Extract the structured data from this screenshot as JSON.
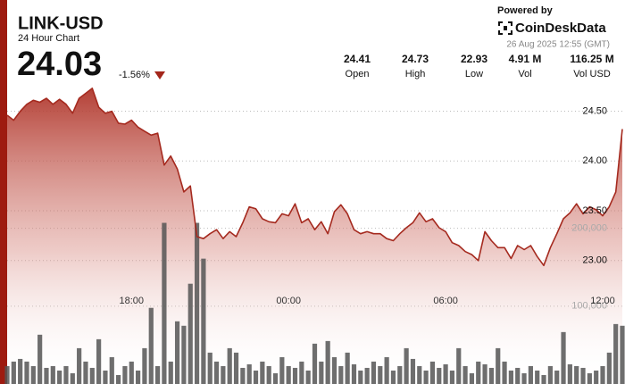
{
  "chart_data": {
    "type": "line",
    "title": "LINK-USD",
    "subtitle": "24 Hour Chart",
    "price": 24.03,
    "change": {
      "value": -1.56,
      "label": "-1.56%"
    },
    "stats": [
      {
        "name": "Open",
        "value": 24.41
      },
      {
        "name": "High",
        "value": 24.73
      },
      {
        "name": "Low",
        "value": 22.93
      },
      {
        "name": "Vol",
        "value": {
          "value": 4910000,
          "label": "4.91 M"
        }
      },
      {
        "name": "Vol USD",
        "value": {
          "value": 116250000,
          "label": "116.25 M"
        }
      }
    ],
    "powered_by": "Powered by",
    "brand": "CoinDeskData",
    "timestamp": "26 Aug 2025 12:55 (GMT)",
    "categories": [
      null,
      null,
      null,
      null,
      null,
      null,
      null,
      null,
      null,
      null,
      null,
      null,
      null,
      null,
      null,
      null,
      null,
      null,
      null,
      "18:00",
      null,
      null,
      null,
      null,
      null,
      null,
      null,
      null,
      null,
      null,
      null,
      null,
      null,
      null,
      null,
      null,
      null,
      null,
      null,
      null,
      null,
      null,
      null,
      "00:00",
      null,
      null,
      null,
      null,
      null,
      null,
      null,
      null,
      null,
      null,
      null,
      null,
      null,
      null,
      null,
      null,
      null,
      null,
      null,
      null,
      null,
      null,
      null,
      "06:00",
      null,
      null,
      null,
      null,
      null,
      null,
      null,
      null,
      null,
      null,
      null,
      null,
      null,
      null,
      null,
      null,
      null,
      null,
      null,
      null,
      null,
      null,
      null,
      "12:00",
      null,
      null,
      null
    ],
    "series": [
      {
        "type": "area",
        "color": "#a52a1f",
        "values": [
          24.46,
          24.41,
          24.5,
          24.57,
          24.61,
          24.59,
          24.63,
          24.57,
          24.62,
          24.57,
          24.48,
          24.63,
          24.68,
          24.73,
          24.54,
          24.48,
          24.5,
          24.38,
          24.37,
          24.41,
          24.34,
          24.3,
          24.26,
          24.28,
          23.96,
          24.05,
          23.92,
          23.69,
          23.75,
          23.24,
          23.22,
          23.27,
          23.31,
          23.22,
          23.29,
          23.24,
          23.38,
          23.54,
          23.52,
          23.42,
          23.39,
          23.38,
          23.47,
          23.45,
          23.57,
          23.38,
          23.42,
          23.31,
          23.39,
          23.27,
          23.49,
          23.56,
          23.47,
          23.31,
          23.27,
          23.29,
          23.27,
          23.27,
          23.22,
          23.2,
          23.27,
          23.33,
          23.38,
          23.48,
          23.39,
          23.42,
          23.33,
          23.29,
          23.18,
          23.15,
          23.09,
          23.06,
          23.0,
          23.29,
          23.2,
          23.13,
          23.13,
          23.02,
          23.15,
          23.11,
          23.15,
          23.04,
          22.95,
          23.13,
          23.27,
          23.42,
          23.48,
          23.57,
          23.47,
          23.54,
          23.51,
          23.45,
          23.54,
          23.69,
          24.32
        ]
      },
      {
        "type": "bar",
        "axis": "y2",
        "color": "#555555",
        "values": [
          23000,
          28800,
          32200,
          28800,
          23000,
          63300,
          20700,
          23000,
          17300,
          23000,
          13800,
          46000,
          28800,
          20700,
          57500,
          17300,
          34500,
          11500,
          23000,
          28800,
          17300,
          46000,
          97800,
          23000,
          207000,
          28800,
          80500,
          74800,
          128800,
          207000,
          161000,
          40300,
          28800,
          23000,
          46000,
          40300,
          20700,
          25300,
          17300,
          28800,
          23000,
          13800,
          34500,
          23000,
          20700,
          28800,
          17300,
          51800,
          28800,
          55200,
          34500,
          23000,
          40300,
          25300,
          17300,
          20700,
          28800,
          23000,
          34500,
          17300,
          23000,
          46000,
          32200,
          23000,
          17300,
          28800,
          20700,
          25300,
          17300,
          46000,
          23000,
          13800,
          28800,
          25300,
          20700,
          46000,
          28800,
          17300,
          20700,
          13800,
          23000,
          17300,
          11500,
          23000,
          17300,
          66700,
          25300,
          23000,
          20700,
          13800,
          17300,
          23000,
          40300,
          77000,
          74800
        ]
      }
    ],
    "ylim": [
      21.76,
      24.81
    ],
    "yticks": [
      {
        "value": 23,
        "label": "23.00"
      },
      {
        "value": 23.5,
        "label": "23.50"
      },
      {
        "value": 24,
        "label": "24.00"
      },
      {
        "value": 24.5,
        "label": "24.50"
      }
    ],
    "y2lim": [
      0,
      390000
    ],
    "y2ticks": [
      {
        "value": 100000,
        "label": "100,000"
      },
      {
        "value": 200000,
        "label": "200,000"
      }
    ],
    "grid": true
  }
}
